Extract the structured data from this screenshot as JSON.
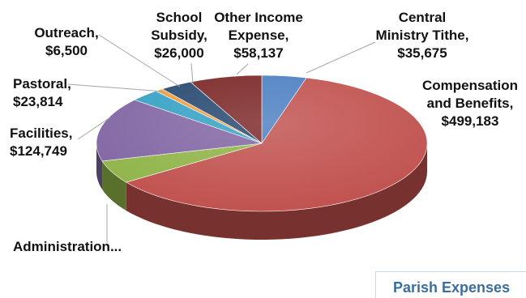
{
  "chart_data": {
    "type": "pie",
    "title": "Parish Expenses",
    "series": [
      {
        "name": "Parish Expenses",
        "slices": [
          {
            "label_lines": [
              "Central",
              "Ministry Tithe,",
              "$35,675"
            ],
            "category": "Central Ministry Tithe",
            "value": 35675,
            "color": "#4a7ec1"
          },
          {
            "label_lines": [
              "Compensation",
              "and Benefits,",
              "$499,183"
            ],
            "category": "Compensation and Benefits",
            "value": 499183,
            "color": "#c0504d"
          },
          {
            "label_lines": [
              "Administration..."
            ],
            "category": "Administration",
            "value": 45000,
            "color": "#8fb347"
          },
          {
            "label_lines": [
              "Facilities,",
              "$124,749"
            ],
            "category": "Facilities",
            "value": 124749,
            "color": "#8064a2"
          },
          {
            "label_lines": [
              "Pastoral,",
              "$23,814"
            ],
            "category": "Pastoral",
            "value": 23814,
            "color": "#33a0c4"
          },
          {
            "label_lines": [
              "Outreach,",
              "$6,500"
            ],
            "category": "Outreach",
            "value": 6500,
            "color": "#f39a3c"
          },
          {
            "label_lines": [
              "School",
              "Subsidy,",
              "$26,000"
            ],
            "category": "School Subsidy",
            "value": 26000,
            "color": "#24466e"
          },
          {
            "label_lines": [
              "Other Income",
              "Expense,",
              "$58,137"
            ],
            "category": "Other Income Expense",
            "value": 58137,
            "color": "#7a2424"
          }
        ]
      }
    ],
    "start_angle_deg": 0,
    "direction": "clockwise",
    "style": "3d-tilted"
  }
}
